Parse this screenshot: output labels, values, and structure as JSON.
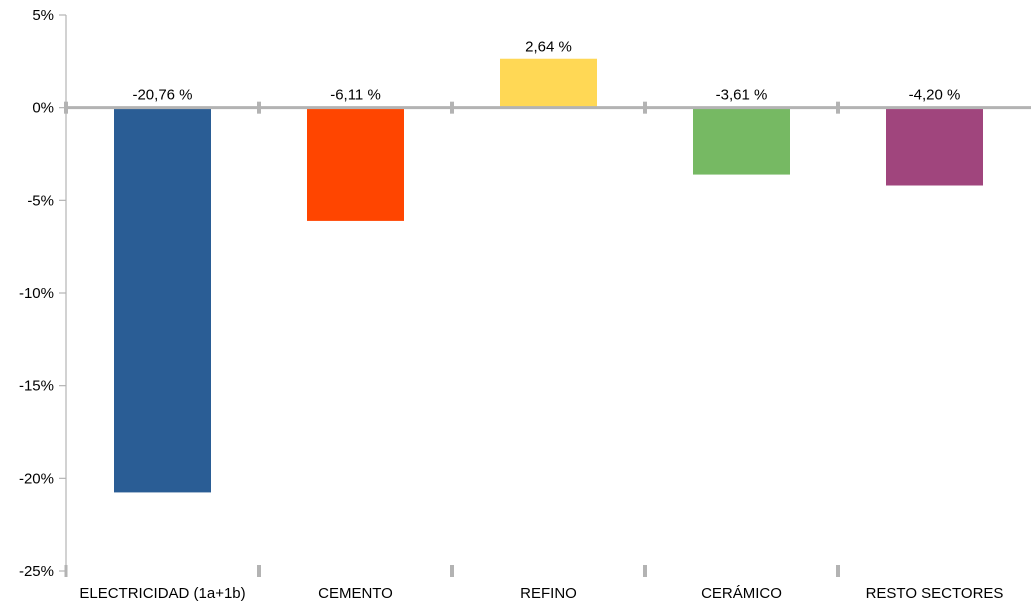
{
  "chart_data": {
    "type": "bar",
    "title": "",
    "xlabel": "",
    "ylabel": "",
    "categories": [
      "ELECTRICIDAD (1a+1b)",
      "CEMENTO",
      "REFINO",
      "CERÁMICO",
      "RESTO SECTORES"
    ],
    "values": [
      -20.76,
      -6.11,
      2.64,
      -3.61,
      -4.2
    ],
    "data_labels": [
      "-20,76 %",
      "-6,11 %",
      "2,64 %",
      "-3,61 %",
      "-4,20 %"
    ],
    "colors": [
      "#2a5d95",
      "#ff4500",
      "#ffd855",
      "#76b963",
      "#a0457d"
    ],
    "ylim": [
      -25,
      5
    ],
    "yticks": [
      5,
      0,
      -5,
      -10,
      -15,
      -20,
      -25
    ],
    "ytick_labels": [
      "5%",
      "0%",
      "-5%",
      "-10%",
      "-15%",
      "-20%",
      "-25%"
    ],
    "grid": false,
    "legend": "none",
    "axis_color": "#b3b3b3"
  }
}
